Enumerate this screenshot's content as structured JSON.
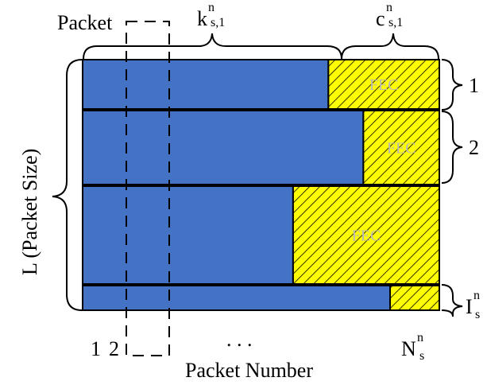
{
  "labels": {
    "packet": "Packet",
    "k_base": "k",
    "k_sup": "n",
    "k_sub": "s,1",
    "c_base": "c",
    "c_sup": "n",
    "c_sub": "s,1",
    "y_axis": "L (Packet Size)",
    "x_axis": "Packet Number",
    "tick_1": "1",
    "tick_2": "2",
    "ellipsis": ". . .",
    "n_base": "N",
    "n_sup": "n",
    "n_sub": "s",
    "row1": "1",
    "row2": "2",
    "i_base": "I",
    "i_sup": "n",
    "i_sub": "s"
  },
  "rows": [
    {
      "name": "row-1",
      "data_fraction": 0.689,
      "fec_label": "FEC"
    },
    {
      "name": "row-2",
      "data_fraction": 0.787,
      "fec_label": "FEC"
    },
    {
      "name": "row-3",
      "data_fraction": 0.59,
      "fec_label": "FEC"
    },
    {
      "name": "row-last",
      "data_fraction": 0.862,
      "fec_label": ""
    }
  ],
  "colors": {
    "data": "#4472c4",
    "fec": "#ffff00",
    "hatch": "#000000",
    "outline": "#000000"
  }
}
